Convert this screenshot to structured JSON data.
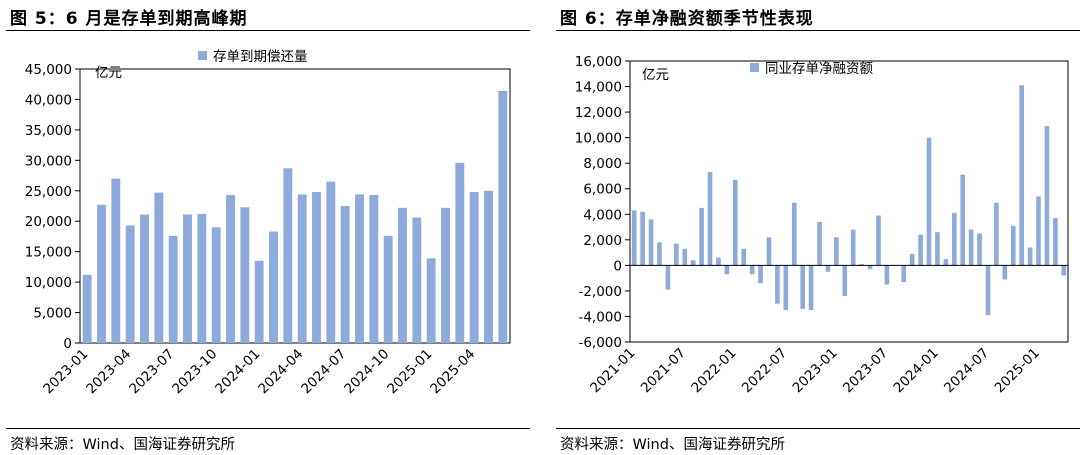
{
  "colors": {
    "bar": "#8eaadb",
    "axis": "#000000"
  },
  "left": {
    "title": "图 5：6 月是存单到期高峰期",
    "source": "资料来源：Wind、国海证券研究所",
    "chart_data": {
      "type": "bar",
      "unit_label": "亿元",
      "legend": "存单到期偿还量",
      "legend_position": "top",
      "ylim": [
        0,
        45000
      ],
      "yticks": [
        0,
        5000,
        10000,
        15000,
        20000,
        25000,
        30000,
        35000,
        40000,
        45000
      ],
      "ytick_labels": [
        "0",
        "5,000",
        "10,000",
        "15,000",
        "20,000",
        "25,000",
        "30,000",
        "35,000",
        "40,000",
        "45,000"
      ],
      "xtick_labels": [
        "2023-01",
        "2023-04",
        "2023-07",
        "2023-10",
        "2024-01",
        "2024-04",
        "2024-07",
        "2024-10",
        "2025-01",
        "2025-04"
      ],
      "xtick_every": 3,
      "grid": false,
      "values": [
        11200,
        22700,
        27000,
        19300,
        21100,
        24700,
        17600,
        21100,
        21200,
        19000,
        24300,
        22300,
        13500,
        18300,
        28700,
        24400,
        24800,
        26500,
        22500,
        24400,
        24300,
        17600,
        22200,
        20600,
        13900,
        22200,
        29600,
        24800,
        25000,
        41400
      ]
    }
  },
  "right": {
    "title": "图 6：存单净融资额季节性表现",
    "source": "资料来源：Wind、国海证券研究所",
    "chart_data": {
      "type": "bar",
      "unit_label": "亿元",
      "legend": "同业存单净融资额",
      "legend_position": "top",
      "ylim": [
        -6000,
        16000
      ],
      "yticks": [
        -6000,
        -4000,
        -2000,
        0,
        2000,
        4000,
        6000,
        8000,
        10000,
        12000,
        14000,
        16000
      ],
      "ytick_labels": [
        "-6,000",
        "-4,000",
        "-2,000",
        "0",
        "2,000",
        "4,000",
        "6,000",
        "8,000",
        "10,000",
        "12,000",
        "14,000",
        "16,000"
      ],
      "xtick_labels": [
        "2021-01",
        "2021-07",
        "2022-01",
        "2022-07",
        "2023-01",
        "2023-07",
        "2024-01",
        "2024-07",
        "2025-01"
      ],
      "xtick_every": 6,
      "grid": false,
      "values": [
        4300,
        4200,
        3600,
        1800,
        -1900,
        1700,
        1300,
        400,
        4500,
        7300,
        600,
        -700,
        6700,
        1300,
        -700,
        -1400,
        2200,
        -3000,
        -3500,
        4900,
        -3400,
        -3500,
        3400,
        -500,
        2200,
        -2400,
        2800,
        100,
        -300,
        3900,
        -1500,
        0,
        -1300,
        900,
        2400,
        10000,
        2600,
        500,
        4100,
        7100,
        2800,
        2500,
        -3900,
        4900,
        -1100,
        3100,
        14100,
        1400,
        5400,
        10900,
        3700,
        -800
      ]
    }
  }
}
